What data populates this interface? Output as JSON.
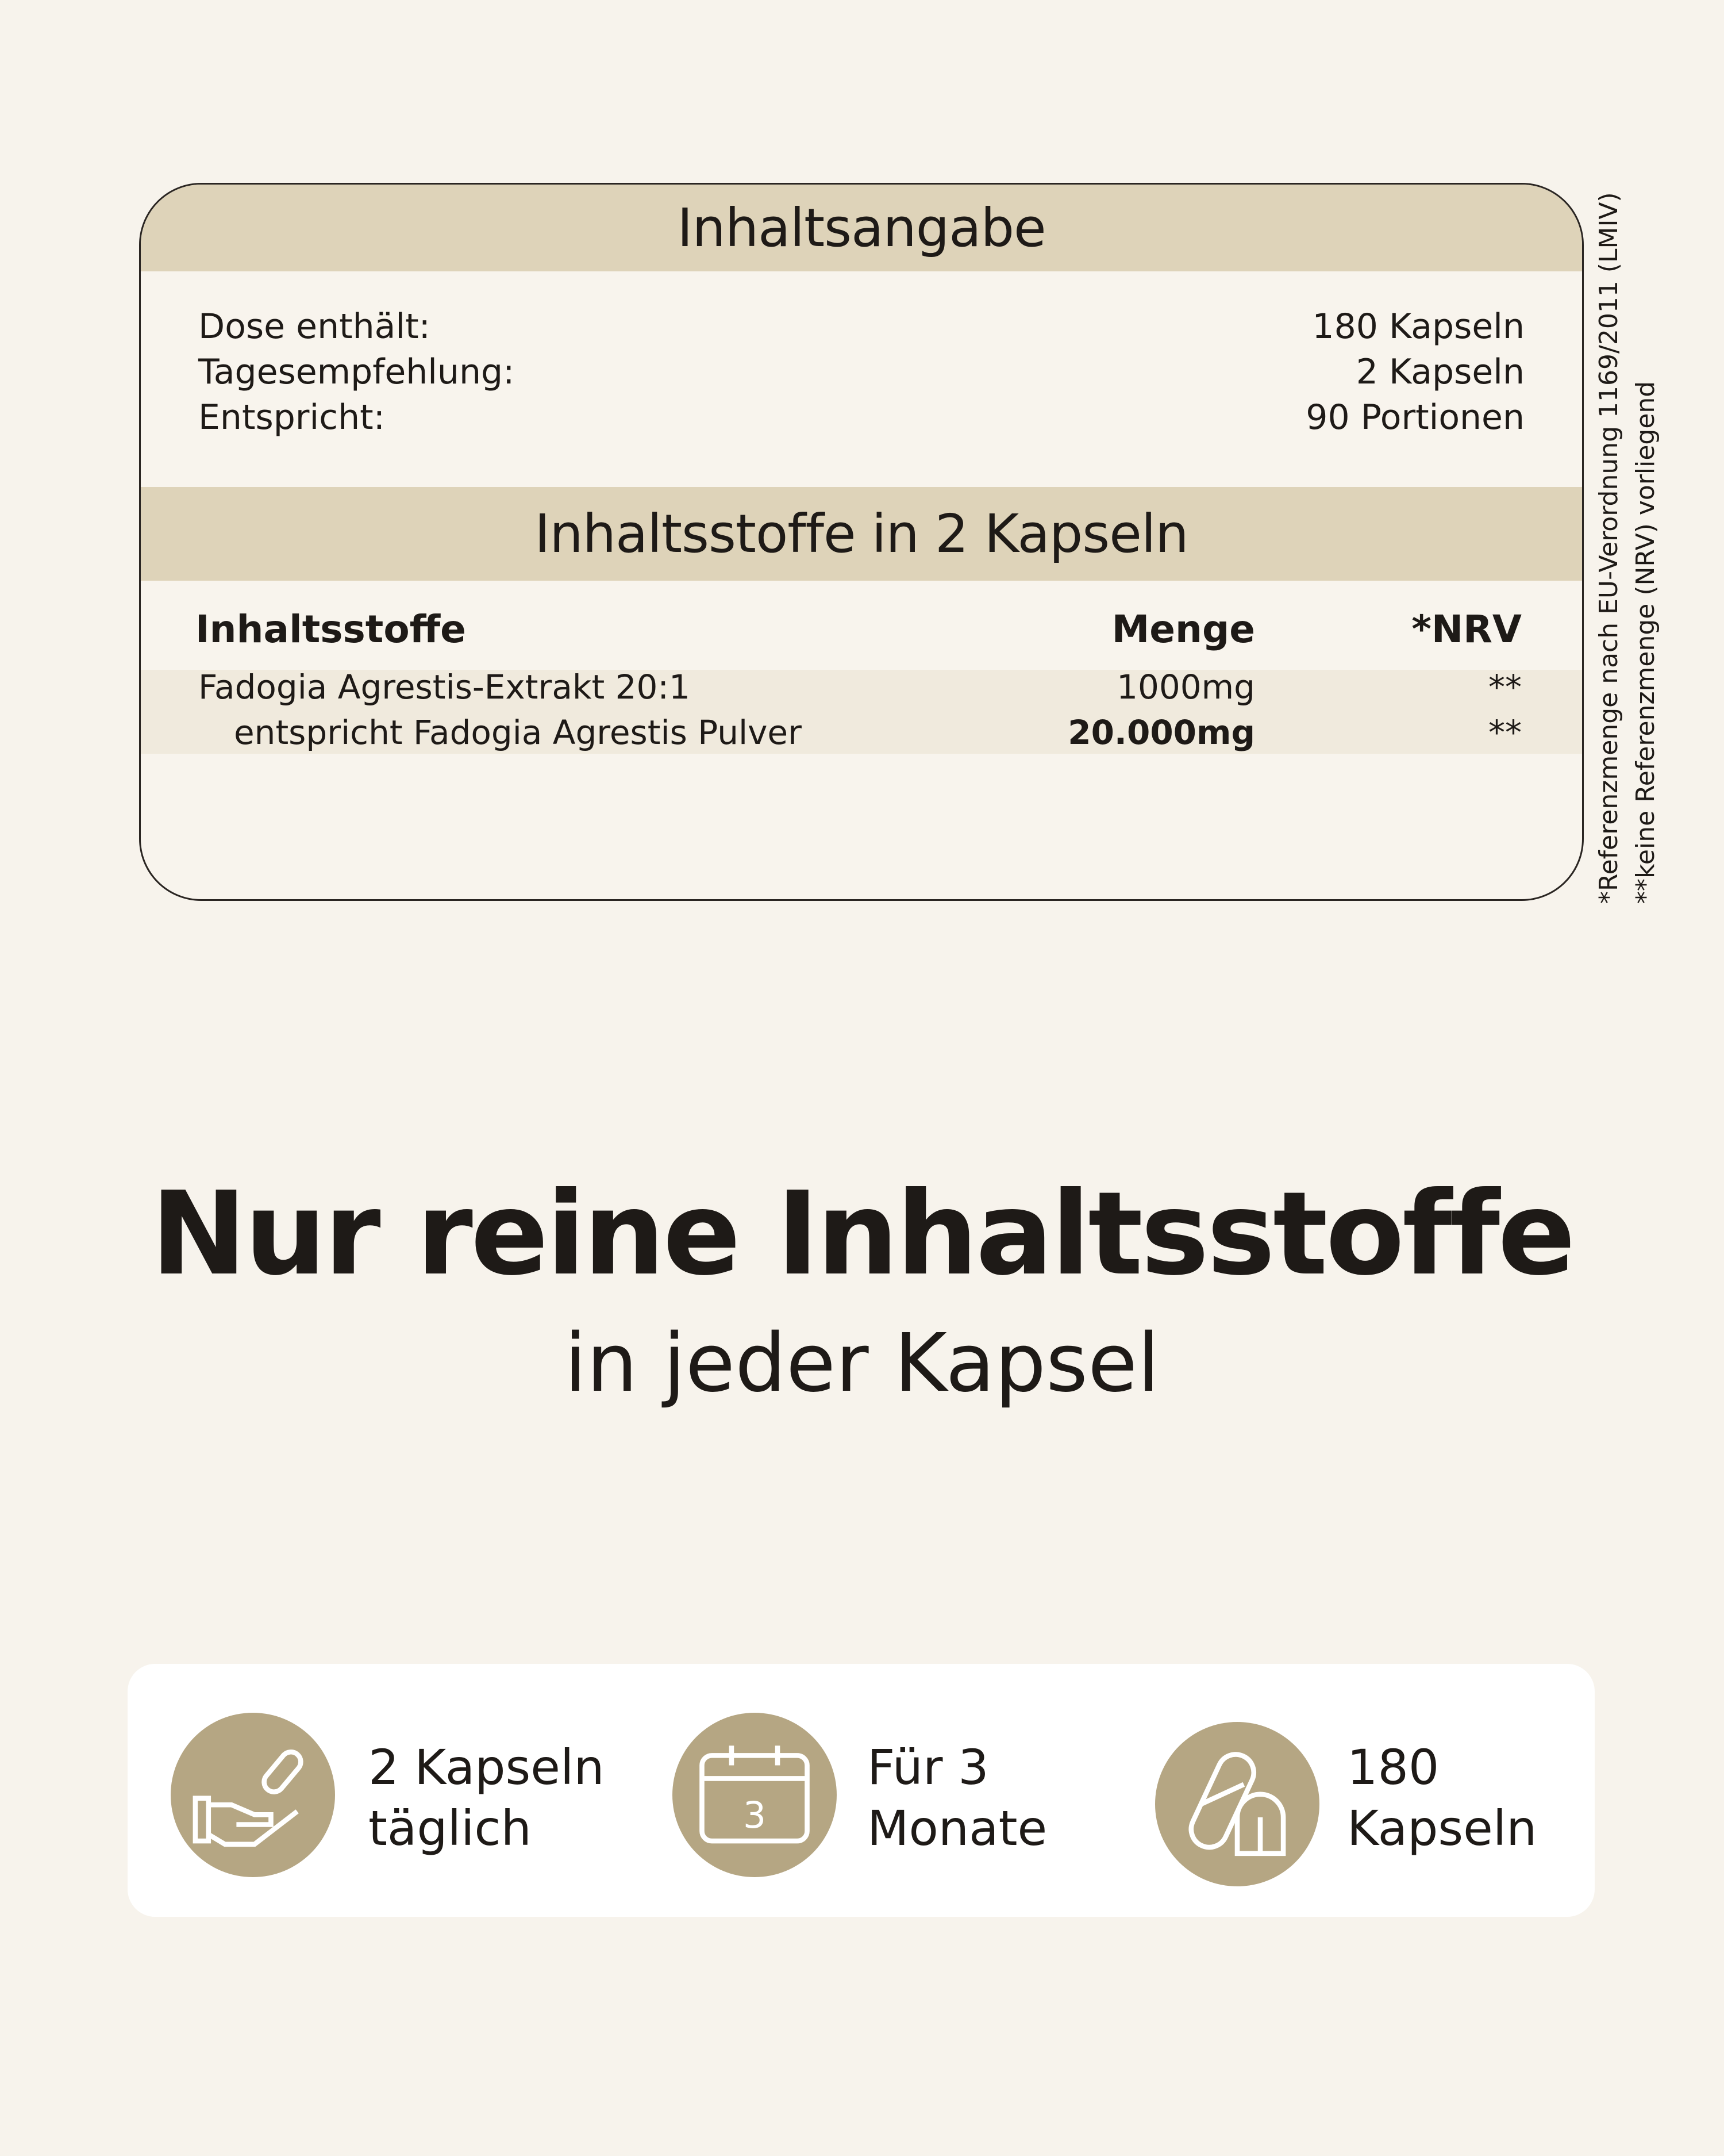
{
  "contents": {
    "title": "Inhaltsangabe",
    "rows": [
      {
        "label": "Dose enthält:",
        "value": "180 Kapseln"
      },
      {
        "label": "Tagesempfehlung:",
        "value": "2 Kapseln"
      },
      {
        "label": "Entspricht:",
        "value": "90 Portionen"
      }
    ],
    "ingredients_title": "Inhaltsstoffe in 2 Kapseln",
    "columns": [
      "Inhaltsstoffe",
      "Menge",
      "*NRV"
    ],
    "ingredients": [
      {
        "name": "Fadogia Agrestis-Extrakt 20:1",
        "amount": "1000mg",
        "nrv": "**"
      },
      {
        "name": "entspricht Fadogia Agrestis Pulver",
        "amount": "20.000mg",
        "nrv": "**"
      }
    ]
  },
  "footnotes": [
    "*Referenzmenge nach EU-Verordnung 1169/2011 (LMIV)",
    "**keine Referenzmenge (NRV) vorliegend"
  ],
  "headline": "Nur reine Inhaltsstoffe",
  "subheadline": "in jeder Kapsel",
  "features": [
    {
      "icon": "hand-capsule-icon",
      "line1": "2 Kapseln",
      "line2": "täglich"
    },
    {
      "icon": "calendar-icon",
      "line1": "Für 3",
      "line2": "Monate",
      "calendar_number": "3"
    },
    {
      "icon": "capsules-icon",
      "line1": "180",
      "line2": "Kapseln"
    }
  ],
  "colors": {
    "background": "#f7f3ec",
    "band": "#ded3b9",
    "icon_circle": "#b5a683"
  }
}
